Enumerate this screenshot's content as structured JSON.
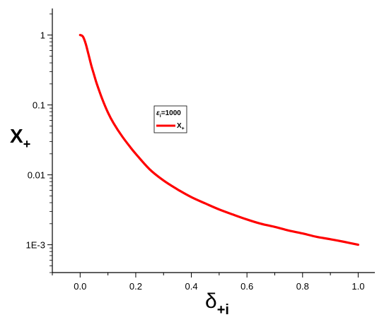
{
  "chart_data": {
    "type": "line",
    "title": "",
    "xlabel": "δ",
    "xlabel_sub": "+i",
    "ylabel": "X",
    "ylabel_sub": "+",
    "xlim": [
      -0.1,
      1.06
    ],
    "ylim": [
      0.0004,
      2.4
    ],
    "y_scale": "log",
    "grid": false,
    "x_ticks": [
      0.0,
      0.2,
      0.4,
      0.6,
      0.8,
      1.0
    ],
    "x_tick_labels": [
      "0.0",
      "0.2",
      "0.4",
      "0.6",
      "0.8",
      "1.0"
    ],
    "y_ticks": [
      1,
      0.1,
      0.01,
      0.001
    ],
    "y_tick_labels": [
      "1",
      "0.1",
      "0.01",
      "1E-3"
    ],
    "legend": {
      "placement": "upper-center",
      "header": "ε",
      "header_sub": "i",
      "header_value": "=1000",
      "entries": [
        {
          "label": "X",
          "label_sub": "+",
          "color": "#ff0000"
        }
      ]
    },
    "series": [
      {
        "color": "#ff0000",
        "x": [
          0.0,
          0.01,
          0.02,
          0.03,
          0.04,
          0.05,
          0.06,
          0.08,
          0.1,
          0.12,
          0.15,
          0.18,
          0.2,
          0.25,
          0.3,
          0.35,
          0.4,
          0.45,
          0.5,
          0.55,
          0.6,
          0.65,
          0.7,
          0.75,
          0.8,
          0.85,
          0.9,
          0.95,
          1.0
        ],
        "y": [
          1.0,
          0.95,
          0.75,
          0.53,
          0.37,
          0.27,
          0.2,
          0.12,
          0.078,
          0.055,
          0.036,
          0.025,
          0.02,
          0.012,
          0.0083,
          0.0062,
          0.0048,
          0.0039,
          0.0032,
          0.0027,
          0.0023,
          0.002,
          0.0018,
          0.0016,
          0.00145,
          0.0013,
          0.0012,
          0.0011,
          0.001
        ]
      }
    ]
  }
}
